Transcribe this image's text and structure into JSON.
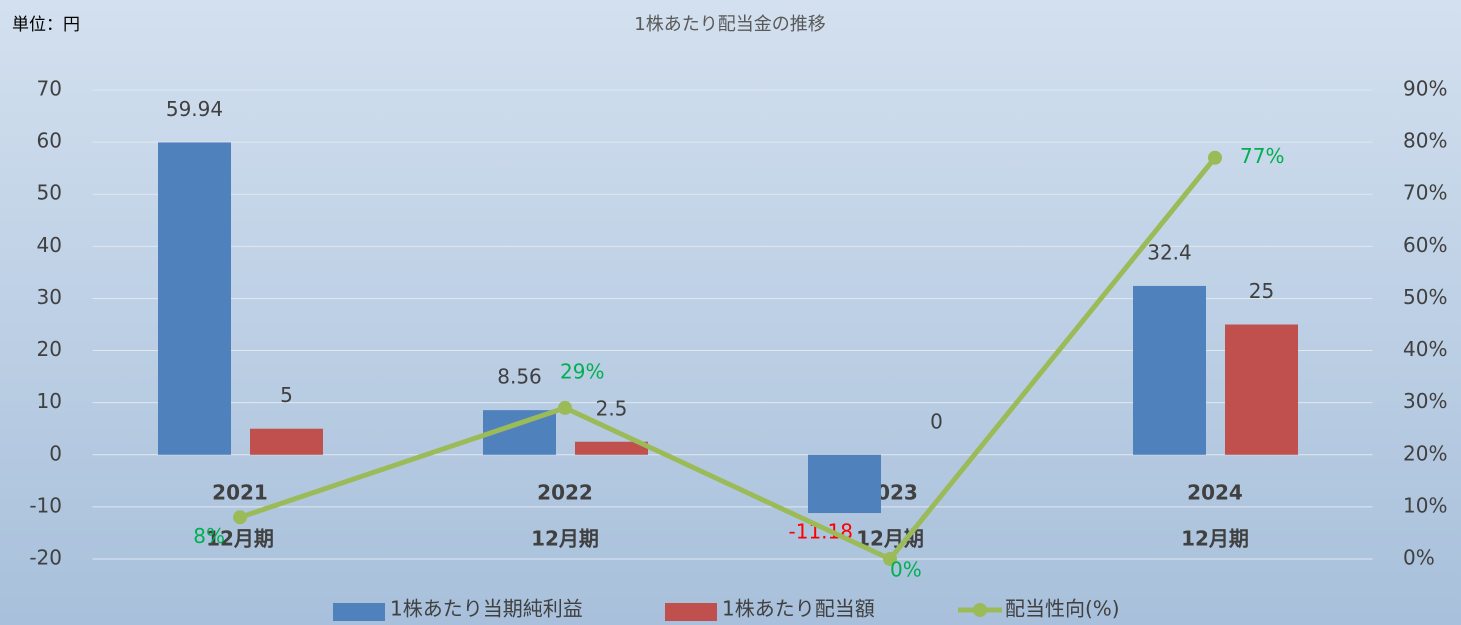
{
  "chart_data": {
    "type": "bar_line",
    "title": "1株あたり配当金の推移",
    "unit_label": "単位：円",
    "categories": [
      "2021",
      "2022",
      "2023",
      "2024"
    ],
    "category_sublabels": [
      "12月期",
      "12月期",
      "12月期",
      "12月期"
    ],
    "series": [
      {
        "name": "1株あたり当期純利益",
        "type": "bar",
        "color": "#4f81bd",
        "values": [
          59.94,
          8.56,
          -11.18,
          32.4
        ]
      },
      {
        "name": "1株あたり配当額",
        "type": "bar",
        "color": "#c0504d",
        "values": [
          5,
          2.5,
          0,
          25
        ]
      },
      {
        "name": "配当性向(%)",
        "type": "line",
        "axis": "y2",
        "color": "#9bbb59",
        "label_color": "#00b050",
        "values": [
          8,
          29,
          0,
          77
        ],
        "value_labels": [
          "8%",
          "29%",
          "0%",
          "77%"
        ]
      }
    ],
    "negative_label_color": "#ff0000",
    "ylim": [
      -20,
      70
    ],
    "yticks": [
      -20,
      -10,
      0,
      10,
      20,
      30,
      40,
      50,
      60,
      70
    ],
    "y2lim": [
      0,
      90
    ],
    "y2ticks": [
      {
        "value": 0,
        "label": "0%"
      },
      {
        "value": 10,
        "label": "10%"
      },
      {
        "value": 20,
        "label": "20%"
      },
      {
        "value": 30,
        "label": "30%"
      },
      {
        "value": 40,
        "label": "40%"
      },
      {
        "value": 50,
        "label": "50%"
      },
      {
        "value": 60,
        "label": "60%"
      },
      {
        "value": 70,
        "label": "70%"
      },
      {
        "value": 80,
        "label": "80%"
      },
      {
        "value": 90,
        "label": "90%"
      }
    ],
    "grid": true,
    "legend": "bottom"
  }
}
